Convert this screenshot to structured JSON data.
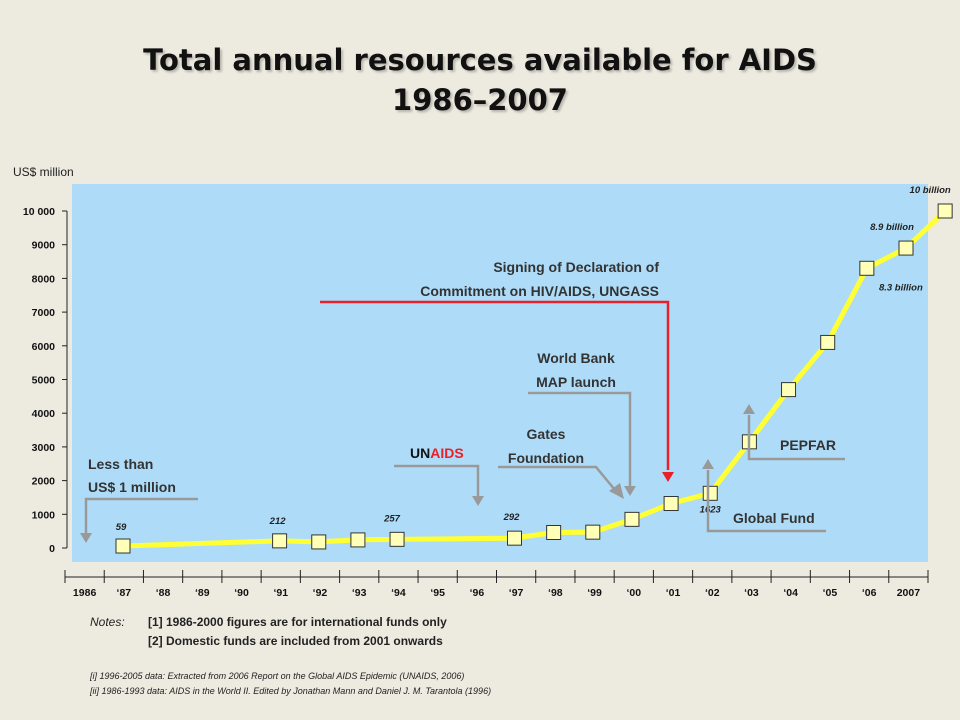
{
  "chart_data": {
    "type": "line",
    "title": "Total annual resources available for AIDS",
    "subtitle": "1986–2007",
    "ylabel": "US$ million",
    "ylim": [
      0,
      10000
    ],
    "yticks": [
      0,
      1000,
      2000,
      3000,
      4000,
      5000,
      6000,
      7000,
      8000,
      9000,
      10000
    ],
    "ytick_labels": [
      "0",
      "1000",
      "2000",
      "3000",
      "4000",
      "5000",
      "6000",
      "7000",
      "8000",
      "9000",
      "10 000"
    ],
    "x_tick_labels": [
      "1986",
      "‘87",
      "‘88",
      "‘89",
      "‘90",
      "‘91",
      "‘92",
      "‘93",
      "‘94",
      "‘95",
      "‘96",
      "‘97",
      "‘98",
      "‘99",
      "‘00",
      "‘01",
      "‘02",
      "‘03",
      "‘04",
      "‘05",
      "‘06",
      "2007"
    ],
    "series": [
      {
        "color": "#ffff33",
        "points": [
          {
            "x": 1986,
            "y": 59
          },
          {
            "x": 1990,
            "y": 212
          },
          {
            "x": 1991,
            "y": 180
          },
          {
            "x": 1992,
            "y": 240
          },
          {
            "x": 1993,
            "y": 257
          },
          {
            "x": 1996,
            "y": 292
          },
          {
            "x": 1997,
            "y": 460
          },
          {
            "x": 1998,
            "y": 470
          },
          {
            "x": 1999,
            "y": 850
          },
          {
            "x": 2000,
            "y": 1320
          },
          {
            "x": 2001,
            "y": 1623
          },
          {
            "x": 2002,
            "y": 3150
          },
          {
            "x": 2003,
            "y": 4700
          },
          {
            "x": 2004,
            "y": 6100
          },
          {
            "x": 2005,
            "y": 8300
          },
          {
            "x": 2006,
            "y": 8900
          },
          {
            "x": 2007,
            "y": 10000
          }
        ]
      }
    ],
    "data_labels": [
      {
        "text": "59",
        "x": 1986,
        "y": 59
      },
      {
        "text": "212",
        "x": 1990,
        "y": 212
      },
      {
        "text": "257",
        "x": 1993,
        "y": 257
      },
      {
        "text": "292",
        "x": 1996,
        "y": 292
      },
      {
        "text": "1623",
        "x": 2001,
        "y": 1623
      },
      {
        "text": "8.3 billion",
        "x": 2005,
        "y": 8300
      },
      {
        "text": "8.9 billion",
        "x": 2006,
        "y": 8900
      },
      {
        "text": "10 billion",
        "x": 2007,
        "y": 10000
      }
    ],
    "annotations": [
      {
        "lines": [
          "Less than",
          "US$ 1 million"
        ],
        "year": 1986
      },
      {
        "lines": [
          "UNAIDS"
        ],
        "year": 1996
      },
      {
        "lines": [
          "Gates",
          "Foundation"
        ],
        "year": 2000
      },
      {
        "lines": [
          "World Bank",
          "MAP launch"
        ],
        "year": 2000
      },
      {
        "lines": [
          "Signing of Declaration of",
          "Commitment on HIV/AIDS, UNGASS"
        ],
        "year": 2001
      },
      {
        "lines": [
          "Global Fund"
        ],
        "year": 2002
      },
      {
        "lines": [
          "PEPFAR"
        ],
        "year": 2003
      }
    ],
    "colors": {
      "plot_bg": "#aedcf8",
      "line": "#ffff33",
      "marker_fill": "#ffffb8",
      "arrow": "#999999",
      "ungass_arrow": "#e8202a",
      "unaids_un": "#111111",
      "unaids_aids": "#e8202a"
    }
  },
  "notes": {
    "label": "Notes:",
    "line1": "[1] 1986-2000  figures are for international funds only",
    "line2": "[2] Domestic funds are included from 2001  onwards"
  },
  "sources": {
    "line1": "[i]  1996-2005 data: Extracted from 2006 Report on the Global AIDS Epidemic (UNAIDS, 2006)",
    "line2": "[ii] 1986-1993 data: AIDS in the World II.  Edited by Jonathan Mann and Daniel J. M. Tarantola (1996)"
  }
}
